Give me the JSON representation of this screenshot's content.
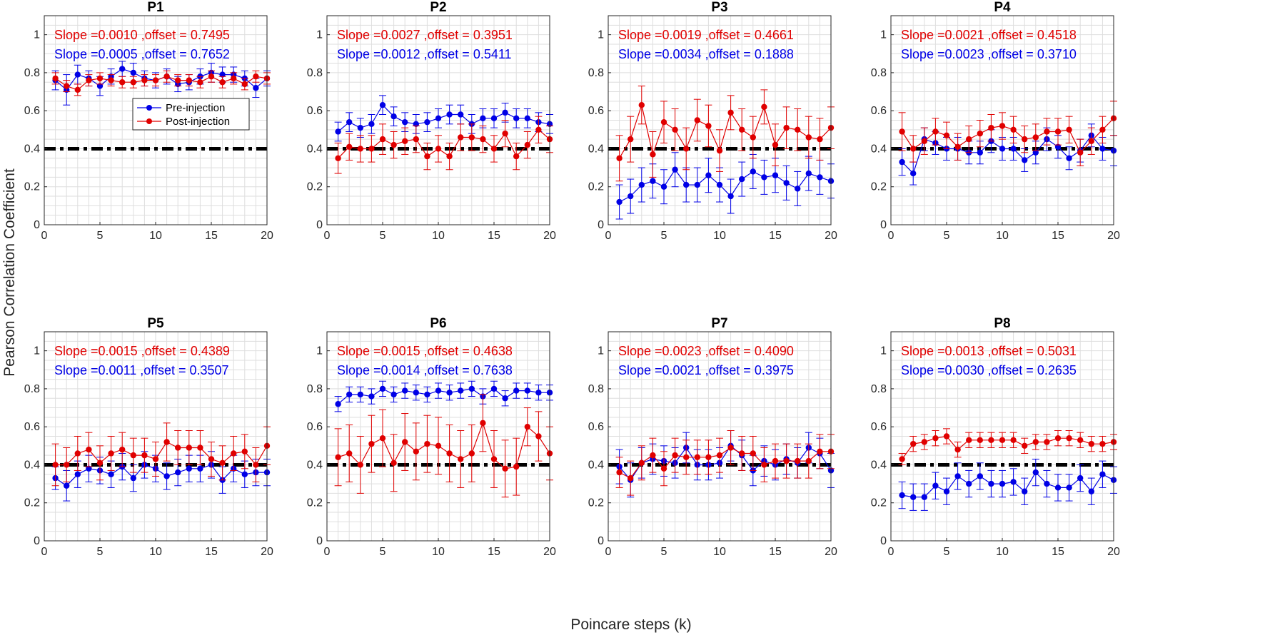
{
  "figure": {
    "ylabel": "Pearson Correlation Coefficient",
    "xlabel": "Poincare steps (k)",
    "legend": [
      "Pre-injection",
      "Post-injection"
    ],
    "colors": {
      "pre": "#0000e6",
      "post": "#e00000",
      "threshold": "#000000",
      "grid": "#dedede"
    }
  },
  "chart_data": [
    {
      "type": "line",
      "title": "P1",
      "xlim": [
        0,
        20
      ],
      "ylim": [
        0,
        1.1
      ],
      "grid": true,
      "threshold": 0.4,
      "xticks": [
        0,
        5,
        10,
        15,
        20
      ],
      "yticks": [
        0,
        0.2,
        0.4,
        0.6,
        0.8,
        1
      ],
      "legend_location": "center-right",
      "x": [
        1,
        2,
        3,
        4,
        5,
        6,
        7,
        8,
        9,
        10,
        11,
        12,
        13,
        14,
        15,
        16,
        17,
        18,
        19,
        20
      ],
      "series": [
        {
          "name": "Pre-injection",
          "annotation": "Slope =0.0005 ,offset = 0.7652",
          "values": [
            0.76,
            0.71,
            0.79,
            0.77,
            0.73,
            0.78,
            0.82,
            0.8,
            0.77,
            0.76,
            0.78,
            0.74,
            0.75,
            0.78,
            0.8,
            0.79,
            0.79,
            0.77,
            0.72,
            0.77
          ],
          "errors": [
            0.05,
            0.08,
            0.05,
            0.04,
            0.05,
            0.04,
            0.04,
            0.05,
            0.04,
            0.04,
            0.04,
            0.04,
            0.04,
            0.04,
            0.05,
            0.04,
            0.04,
            0.04,
            0.05,
            0.04
          ]
        },
        {
          "name": "Post-injection",
          "annotation": "Slope =0.0010 ,offset = 0.7495",
          "values": [
            0.77,
            0.73,
            0.71,
            0.76,
            0.77,
            0.76,
            0.75,
            0.75,
            0.76,
            0.76,
            0.78,
            0.76,
            0.76,
            0.75,
            0.78,
            0.75,
            0.77,
            0.74,
            0.78,
            0.77
          ],
          "errors": [
            0.03,
            0.03,
            0.03,
            0.03,
            0.03,
            0.03,
            0.03,
            0.03,
            0.03,
            0.03,
            0.03,
            0.03,
            0.03,
            0.03,
            0.03,
            0.03,
            0.03,
            0.03,
            0.03,
            0.03
          ]
        }
      ]
    },
    {
      "type": "line",
      "title": "P2",
      "xlim": [
        0,
        20
      ],
      "ylim": [
        0,
        1.1
      ],
      "grid": true,
      "threshold": 0.4,
      "xticks": [
        0,
        5,
        10,
        15,
        20
      ],
      "yticks": [
        0,
        0.2,
        0.4,
        0.6,
        0.8,
        1
      ],
      "x": [
        1,
        2,
        3,
        4,
        5,
        6,
        7,
        8,
        9,
        10,
        11,
        12,
        13,
        14,
        15,
        16,
        17,
        18,
        19,
        20
      ],
      "series": [
        {
          "name": "Pre-injection",
          "annotation": "Slope =0.0012 ,offset = 0.5411",
          "values": [
            0.49,
            0.54,
            0.51,
            0.53,
            0.63,
            0.57,
            0.54,
            0.53,
            0.54,
            0.56,
            0.58,
            0.58,
            0.53,
            0.56,
            0.56,
            0.59,
            0.56,
            0.56,
            0.54,
            0.53
          ],
          "errors": [
            0.05,
            0.05,
            0.05,
            0.05,
            0.05,
            0.05,
            0.05,
            0.05,
            0.05,
            0.05,
            0.05,
            0.05,
            0.05,
            0.05,
            0.05,
            0.05,
            0.05,
            0.05,
            0.05,
            0.05
          ]
        },
        {
          "name": "Post-injection",
          "annotation": "Slope =0.0027 ,offset = 0.3951",
          "values": [
            0.35,
            0.41,
            0.4,
            0.4,
            0.45,
            0.42,
            0.44,
            0.45,
            0.36,
            0.4,
            0.36,
            0.46,
            0.46,
            0.45,
            0.4,
            0.48,
            0.36,
            0.42,
            0.5,
            0.45
          ],
          "errors": [
            0.08,
            0.07,
            0.07,
            0.07,
            0.08,
            0.07,
            0.07,
            0.07,
            0.07,
            0.07,
            0.07,
            0.07,
            0.07,
            0.07,
            0.07,
            0.07,
            0.07,
            0.07,
            0.07,
            0.07
          ]
        }
      ]
    },
    {
      "type": "line",
      "title": "P3",
      "xlim": [
        0,
        20
      ],
      "ylim": [
        0,
        1.1
      ],
      "grid": true,
      "threshold": 0.4,
      "xticks": [
        0,
        5,
        10,
        15,
        20
      ],
      "yticks": [
        0,
        0.2,
        0.4,
        0.6,
        0.8,
        1
      ],
      "x": [
        1,
        2,
        3,
        4,
        5,
        6,
        7,
        8,
        9,
        10,
        11,
        12,
        13,
        14,
        15,
        16,
        17,
        18,
        19,
        20
      ],
      "series": [
        {
          "name": "Pre-injection",
          "annotation": "Slope =0.0034 ,offset = 0.1888",
          "values": [
            0.12,
            0.15,
            0.21,
            0.23,
            0.2,
            0.29,
            0.21,
            0.21,
            0.26,
            0.21,
            0.15,
            0.24,
            0.28,
            0.25,
            0.26,
            0.22,
            0.19,
            0.27,
            0.25,
            0.23
          ],
          "errors": [
            0.09,
            0.09,
            0.09,
            0.09,
            0.09,
            0.09,
            0.09,
            0.09,
            0.09,
            0.09,
            0.09,
            0.09,
            0.09,
            0.09,
            0.09,
            0.09,
            0.09,
            0.09,
            0.09,
            0.09
          ]
        },
        {
          "name": "Post-injection",
          "annotation": "Slope =0.0019 ,offset = 0.4661",
          "values": [
            0.35,
            0.45,
            0.63,
            0.37,
            0.54,
            0.5,
            0.4,
            0.55,
            0.52,
            0.39,
            0.59,
            0.5,
            0.46,
            0.62,
            0.42,
            0.51,
            0.5,
            0.46,
            0.45,
            0.51
          ],
          "errors": [
            0.12,
            0.12,
            0.1,
            0.12,
            0.11,
            0.11,
            0.11,
            0.11,
            0.11,
            0.11,
            0.09,
            0.11,
            0.11,
            0.09,
            0.11,
            0.11,
            0.11,
            0.11,
            0.11,
            0.11
          ]
        }
      ]
    },
    {
      "type": "line",
      "title": "P4",
      "xlim": [
        0,
        20
      ],
      "ylim": [
        0,
        1.1
      ],
      "grid": true,
      "threshold": 0.4,
      "xticks": [
        0,
        5,
        10,
        15,
        20
      ],
      "yticks": [
        0,
        0.2,
        0.4,
        0.6,
        0.8,
        1
      ],
      "x": [
        1,
        2,
        3,
        4,
        5,
        6,
        7,
        8,
        9,
        10,
        11,
        12,
        13,
        14,
        15,
        16,
        17,
        18,
        19,
        20
      ],
      "series": [
        {
          "name": "Pre-injection",
          "annotation": "Slope =0.0023 ,offset = 0.3710",
          "values": [
            0.33,
            0.27,
            0.45,
            0.43,
            0.4,
            0.4,
            0.38,
            0.38,
            0.44,
            0.4,
            0.4,
            0.34,
            0.38,
            0.45,
            0.41,
            0.35,
            0.39,
            0.47,
            0.4,
            0.39
          ],
          "errors": [
            0.07,
            0.06,
            0.06,
            0.06,
            0.06,
            0.06,
            0.06,
            0.06,
            0.06,
            0.06,
            0.06,
            0.06,
            0.06,
            0.06,
            0.06,
            0.06,
            0.06,
            0.06,
            0.06,
            0.08
          ]
        },
        {
          "name": "Post-injection",
          "annotation": "Slope =0.0021 ,offset = 0.4518",
          "values": [
            0.49,
            0.4,
            0.44,
            0.49,
            0.47,
            0.41,
            0.45,
            0.48,
            0.51,
            0.52,
            0.5,
            0.45,
            0.46,
            0.49,
            0.49,
            0.5,
            0.38,
            0.44,
            0.5,
            0.56
          ],
          "errors": [
            0.1,
            0.07,
            0.07,
            0.07,
            0.07,
            0.07,
            0.07,
            0.07,
            0.07,
            0.07,
            0.07,
            0.07,
            0.07,
            0.07,
            0.07,
            0.07,
            0.07,
            0.07,
            0.07,
            0.09
          ]
        }
      ]
    },
    {
      "type": "line",
      "title": "P5",
      "xlim": [
        0,
        20
      ],
      "ylim": [
        0,
        1.1
      ],
      "grid": true,
      "threshold": 0.4,
      "xticks": [
        0,
        5,
        10,
        15,
        20
      ],
      "yticks": [
        0,
        0.2,
        0.4,
        0.6,
        0.8,
        1
      ],
      "x": [
        1,
        2,
        3,
        4,
        5,
        6,
        7,
        8,
        9,
        10,
        11,
        12,
        13,
        14,
        15,
        16,
        17,
        18,
        19,
        20
      ],
      "series": [
        {
          "name": "Pre-injection",
          "annotation": "Slope =0.0011 ,offset = 0.3507",
          "values": [
            0.33,
            0.29,
            0.35,
            0.38,
            0.37,
            0.35,
            0.39,
            0.33,
            0.4,
            0.38,
            0.34,
            0.36,
            0.38,
            0.38,
            0.4,
            0.32,
            0.38,
            0.35,
            0.36,
            0.36
          ],
          "errors": [
            0.06,
            0.08,
            0.07,
            0.07,
            0.07,
            0.07,
            0.07,
            0.07,
            0.07,
            0.07,
            0.07,
            0.07,
            0.07,
            0.07,
            0.07,
            0.07,
            0.07,
            0.07,
            0.07,
            0.07
          ]
        },
        {
          "name": "Post-injection",
          "annotation": "Slope =0.0015 ,offset = 0.4389",
          "values": [
            0.4,
            0.4,
            0.46,
            0.48,
            0.41,
            0.46,
            0.48,
            0.45,
            0.45,
            0.43,
            0.52,
            0.49,
            0.49,
            0.49,
            0.43,
            0.41,
            0.46,
            0.47,
            0.4,
            0.5
          ],
          "errors": [
            0.11,
            0.09,
            0.09,
            0.09,
            0.09,
            0.09,
            0.09,
            0.09,
            0.09,
            0.09,
            0.1,
            0.09,
            0.09,
            0.09,
            0.09,
            0.09,
            0.09,
            0.09,
            0.09,
            0.1
          ]
        }
      ]
    },
    {
      "type": "line",
      "title": "P6",
      "xlim": [
        0,
        20
      ],
      "ylim": [
        0,
        1.1
      ],
      "grid": true,
      "threshold": 0.4,
      "xticks": [
        0,
        5,
        10,
        15,
        20
      ],
      "yticks": [
        0,
        0.2,
        0.4,
        0.6,
        0.8,
        1
      ],
      "x": [
        1,
        2,
        3,
        4,
        5,
        6,
        7,
        8,
        9,
        10,
        11,
        12,
        13,
        14,
        15,
        16,
        17,
        18,
        19,
        20
      ],
      "series": [
        {
          "name": "Pre-injection",
          "annotation": "Slope =0.0014 ,offset = 0.7638",
          "values": [
            0.72,
            0.77,
            0.77,
            0.76,
            0.8,
            0.77,
            0.79,
            0.78,
            0.77,
            0.79,
            0.78,
            0.79,
            0.8,
            0.76,
            0.8,
            0.75,
            0.79,
            0.79,
            0.78,
            0.78
          ],
          "errors": [
            0.04,
            0.04,
            0.04,
            0.04,
            0.04,
            0.04,
            0.04,
            0.04,
            0.04,
            0.04,
            0.04,
            0.04,
            0.04,
            0.04,
            0.04,
            0.04,
            0.04,
            0.04,
            0.04,
            0.04
          ]
        },
        {
          "name": "Post-injection",
          "annotation": "Slope =0.0015 ,offset = 0.4638",
          "values": [
            0.44,
            0.46,
            0.4,
            0.51,
            0.54,
            0.41,
            0.52,
            0.47,
            0.51,
            0.5,
            0.46,
            0.43,
            0.46,
            0.62,
            0.43,
            0.38,
            0.39,
            0.6,
            0.55,
            0.46
          ],
          "errors": [
            0.15,
            0.15,
            0.15,
            0.15,
            0.15,
            0.15,
            0.15,
            0.15,
            0.15,
            0.15,
            0.15,
            0.15,
            0.15,
            0.15,
            0.15,
            0.15,
            0.15,
            0.1,
            0.13,
            0.14
          ]
        }
      ]
    },
    {
      "type": "line",
      "title": "P7",
      "xlim": [
        0,
        20
      ],
      "ylim": [
        0,
        1.1
      ],
      "grid": true,
      "threshold": 0.4,
      "xticks": [
        0,
        5,
        10,
        15,
        20
      ],
      "yticks": [
        0,
        0.2,
        0.4,
        0.6,
        0.8,
        1
      ],
      "x": [
        1,
        2,
        3,
        4,
        5,
        6,
        7,
        8,
        9,
        10,
        11,
        12,
        13,
        14,
        15,
        16,
        17,
        18,
        19,
        20
      ],
      "series": [
        {
          "name": "Pre-injection",
          "annotation": "Slope =0.0021 ,offset = 0.3975",
          "values": [
            0.39,
            0.32,
            0.41,
            0.43,
            0.42,
            0.41,
            0.49,
            0.4,
            0.4,
            0.41,
            0.5,
            0.45,
            0.37,
            0.42,
            0.4,
            0.43,
            0.41,
            0.49,
            0.46,
            0.37
          ],
          "errors": [
            0.09,
            0.09,
            0.08,
            0.08,
            0.08,
            0.08,
            0.08,
            0.08,
            0.08,
            0.08,
            0.08,
            0.08,
            0.08,
            0.08,
            0.08,
            0.08,
            0.08,
            0.08,
            0.08,
            0.09
          ]
        },
        {
          "name": "Post-injection",
          "annotation": "Slope =0.0023 ,offset = 0.4090",
          "values": [
            0.36,
            0.33,
            0.41,
            0.45,
            0.38,
            0.45,
            0.44,
            0.44,
            0.44,
            0.45,
            0.49,
            0.46,
            0.46,
            0.4,
            0.42,
            0.42,
            0.42,
            0.42,
            0.47,
            0.47
          ],
          "errors": [
            0.08,
            0.09,
            0.09,
            0.09,
            0.09,
            0.09,
            0.09,
            0.09,
            0.09,
            0.09,
            0.09,
            0.09,
            0.09,
            0.09,
            0.09,
            0.09,
            0.09,
            0.09,
            0.09,
            0.09
          ]
        }
      ]
    },
    {
      "type": "line",
      "title": "P8",
      "xlim": [
        0,
        20
      ],
      "ylim": [
        0,
        1.1
      ],
      "grid": true,
      "threshold": 0.4,
      "xticks": [
        0,
        5,
        10,
        15,
        20
      ],
      "yticks": [
        0,
        0.2,
        0.4,
        0.6,
        0.8,
        1
      ],
      "x": [
        1,
        2,
        3,
        4,
        5,
        6,
        7,
        8,
        9,
        10,
        11,
        12,
        13,
        14,
        15,
        16,
        17,
        18,
        19,
        20
      ],
      "series": [
        {
          "name": "Pre-injection",
          "annotation": "Slope =0.0030 ,offset = 0.2635",
          "values": [
            0.24,
            0.23,
            0.23,
            0.29,
            0.26,
            0.34,
            0.3,
            0.34,
            0.3,
            0.3,
            0.31,
            0.26,
            0.36,
            0.3,
            0.28,
            0.28,
            0.33,
            0.26,
            0.35,
            0.32
          ],
          "errors": [
            0.07,
            0.07,
            0.07,
            0.07,
            0.07,
            0.07,
            0.07,
            0.07,
            0.07,
            0.07,
            0.07,
            0.07,
            0.07,
            0.07,
            0.07,
            0.07,
            0.07,
            0.07,
            0.07,
            0.07
          ]
        },
        {
          "name": "Post-injection",
          "annotation": "Slope =0.0013 ,offset = 0.5031",
          "values": [
            0.43,
            0.51,
            0.52,
            0.54,
            0.55,
            0.48,
            0.53,
            0.53,
            0.53,
            0.53,
            0.53,
            0.5,
            0.52,
            0.52,
            0.54,
            0.54,
            0.53,
            0.51,
            0.51,
            0.52
          ],
          "errors": [
            0.03,
            0.04,
            0.04,
            0.04,
            0.04,
            0.04,
            0.04,
            0.04,
            0.04,
            0.04,
            0.04,
            0.04,
            0.04,
            0.04,
            0.04,
            0.04,
            0.04,
            0.04,
            0.04,
            0.04
          ]
        }
      ]
    }
  ]
}
